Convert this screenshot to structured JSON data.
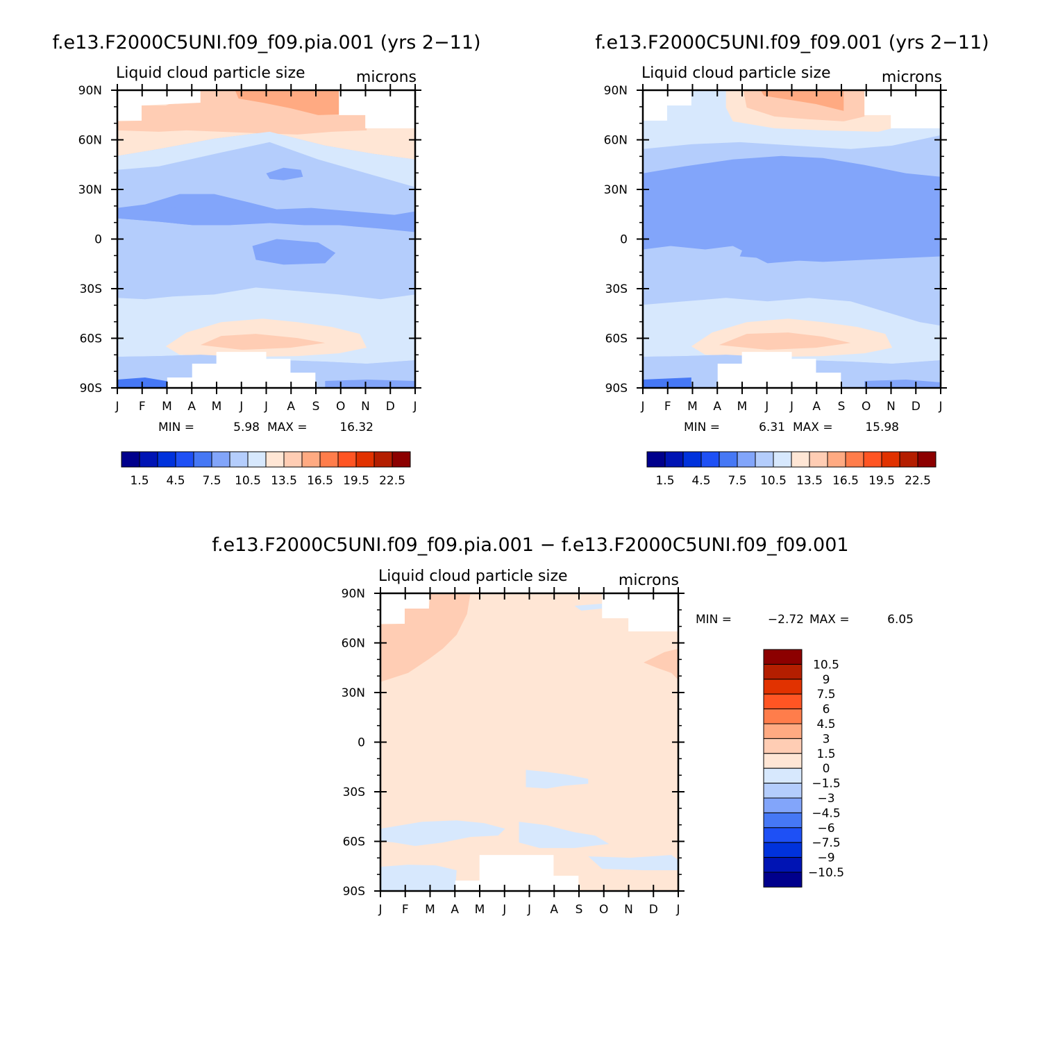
{
  "chart_data": [
    {
      "type": "heatmap",
      "id": "p1",
      "title": "f.e13.F2000C5UNI.f09_f09.pia.001 (yrs 2−11)",
      "subtitle_left": "Liquid cloud particle size",
      "subtitle_right": "microns",
      "x_ticks": [
        "J",
        "F",
        "M",
        "A",
        "M",
        "J",
        "J",
        "A",
        "S",
        "O",
        "N",
        "D",
        "J"
      ],
      "y_ticks": [
        "90N",
        "60N",
        "30N",
        "0",
        "30S",
        "60S",
        "90S"
      ],
      "stats": {
        "min_label": "MIN =",
        "min": "5.98",
        "max_label": "MAX =",
        "max": "16.32"
      },
      "legend_labels": [
        "1.5",
        "4.5",
        "7.5",
        "10.5",
        "13.5",
        "16.5",
        "19.5",
        "22.5"
      ]
    },
    {
      "type": "heatmap",
      "id": "p2",
      "title": "f.e13.F2000C5UNI.f09_f09.001 (yrs 2−11)",
      "subtitle_left": "Liquid cloud particle size",
      "subtitle_right": "microns",
      "x_ticks": [
        "J",
        "F",
        "M",
        "A",
        "M",
        "J",
        "J",
        "A",
        "S",
        "O",
        "N",
        "D",
        "J"
      ],
      "y_ticks": [
        "90N",
        "60N",
        "30N",
        "0",
        "30S",
        "60S",
        "90S"
      ],
      "stats": {
        "min_label": "MIN =",
        "min": "6.31",
        "max_label": "MAX =",
        "max": "15.98"
      },
      "legend_labels": [
        "1.5",
        "4.5",
        "7.5",
        "10.5",
        "13.5",
        "16.5",
        "19.5",
        "22.5"
      ]
    },
    {
      "type": "heatmap",
      "id": "p3",
      "title": "f.e13.F2000C5UNI.f09_f09.pia.001 − f.e13.F2000C5UNI.f09_f09.001",
      "subtitle_left": "Liquid cloud particle size",
      "subtitle_right": "microns",
      "x_ticks": [
        "J",
        "F",
        "M",
        "A",
        "M",
        "J",
        "J",
        "A",
        "S",
        "O",
        "N",
        "D",
        "J"
      ],
      "y_ticks": [
        "90N",
        "60N",
        "30N",
        "0",
        "30S",
        "60S",
        "90S"
      ],
      "stats": {
        "min_label": "MIN =",
        "min": "−2.72",
        "max_label": "MAX =",
        "max": "6.05"
      },
      "legend_labels": [
        "10.5",
        "9",
        "7.5",
        "6",
        "4.5",
        "3",
        "1.5",
        "0",
        "−1.5",
        "−3",
        "−4.5",
        "−6",
        "−7.5",
        "−9",
        "−10.5"
      ]
    }
  ],
  "palette": [
    "#00008c",
    "#0014b4",
    "#0032dc",
    "#1e50f5",
    "#4678f5",
    "#82a5fa",
    "#b4cdfc",
    "#d7e8fd",
    "#ffe6d5",
    "#ffcdb4",
    "#ffaa82",
    "#ff7d4b",
    "#ff5523",
    "#e13200",
    "#b41e00",
    "#8c0000"
  ]
}
